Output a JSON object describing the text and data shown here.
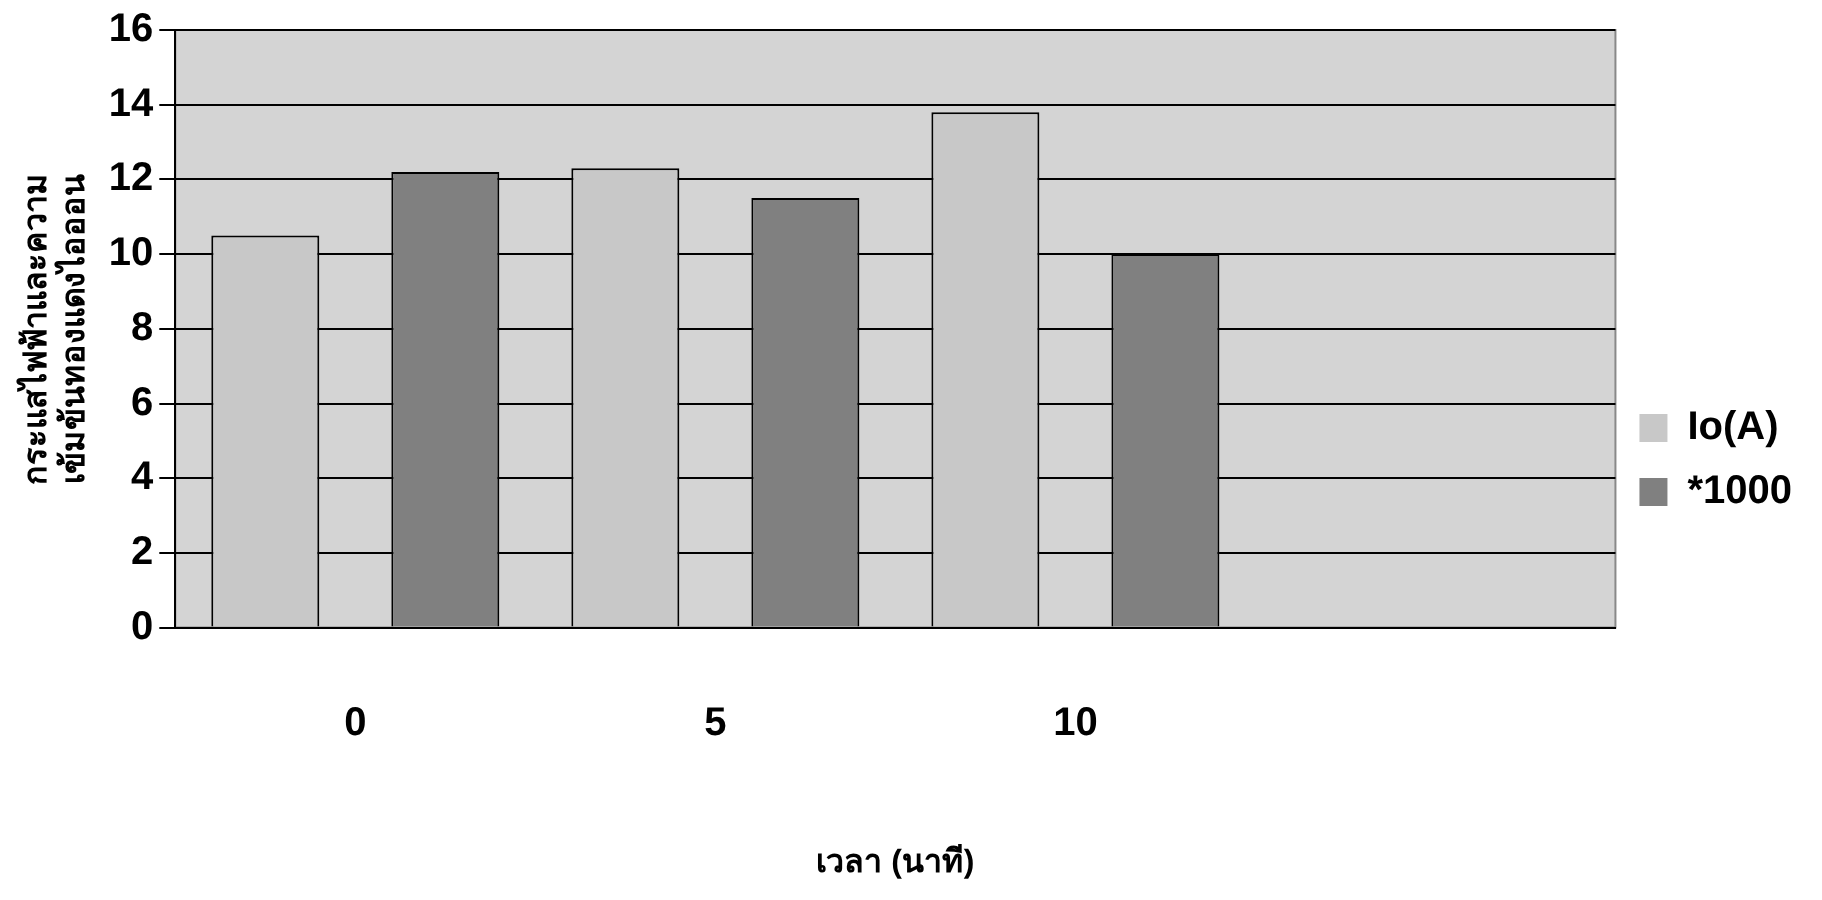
{
  "chart_data": {
    "type": "bar",
    "categories": [
      "0",
      "5",
      "10",
      null
    ],
    "series": [
      {
        "name": "Io(A)",
        "color": "#c8c8c8",
        "values": [
          10.5,
          12.3,
          13.8,
          null
        ]
      },
      {
        "name": "*1000",
        "color": "#808080",
        "values": [
          12.2,
          11.5,
          10.0,
          null
        ]
      }
    ],
    "ylim": [
      0,
      16
    ],
    "yticks": [
      0,
      2,
      4,
      6,
      8,
      10,
      12,
      14,
      16
    ],
    "grid": "y",
    "legend": "right",
    "xlabel": "เวลา (นาที)",
    "ylabel": "กระแสไฟฟ้าและความ\nเข้มข้นทองแดงไอออน"
  }
}
